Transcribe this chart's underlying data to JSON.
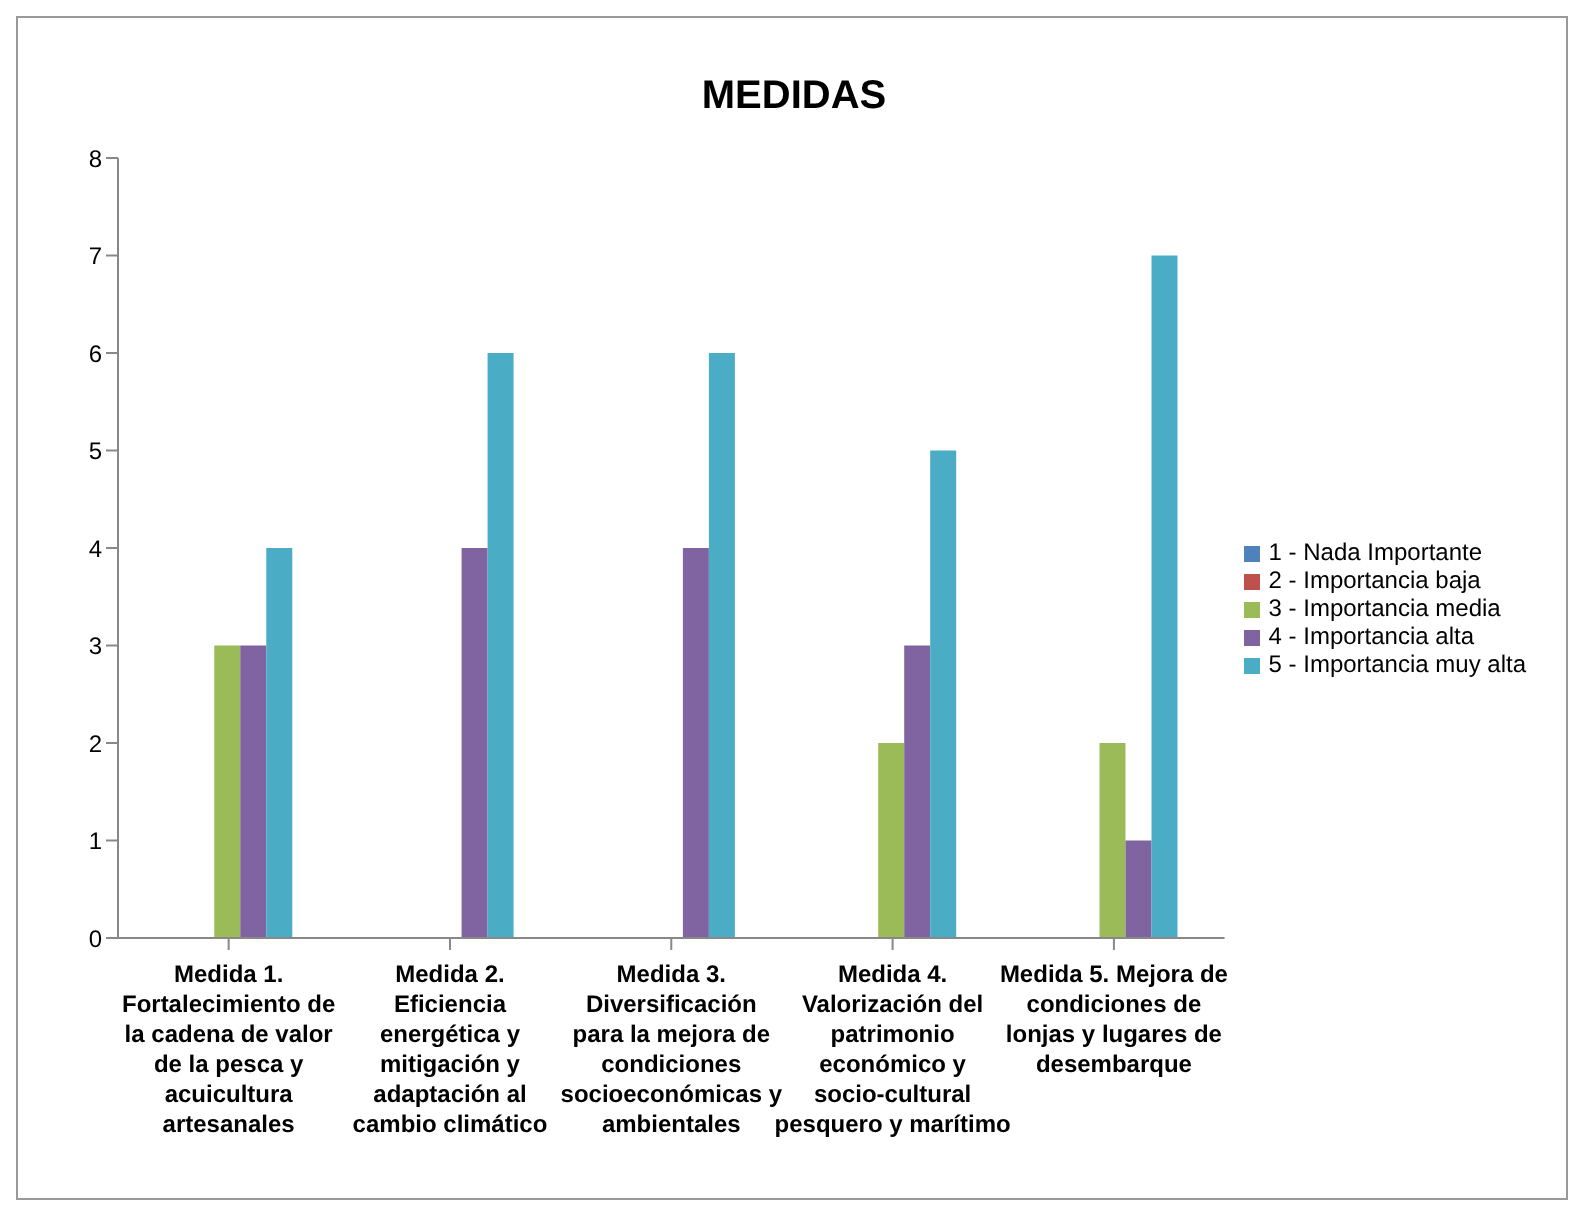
{
  "chart_data": {
    "type": "bar",
    "title": "MEDIDAS",
    "categories": [
      "Medida 1. Fortalecimiento de la cadena de valor de la pesca y acuicultura artesanales",
      "Medida 2. Eficiencia energética y mitigación y adaptación al cambio climático",
      "Medida 3. Diversificación para la mejora de condiciones socioeconómicas y ambientales",
      "Medida 4. Valorización del patrimonio económico y socio-cultural pesquero y marítimo",
      "Medida 5. Mejora de condiciones de lonjas y lugares de desembarque"
    ],
    "series": [
      {
        "name": "1 - Nada Importante",
        "color": "#4f81bd",
        "values": [
          0,
          0,
          0,
          0,
          0
        ]
      },
      {
        "name": "2 - Importancia baja",
        "color": "#c0504d",
        "values": [
          0,
          0,
          0,
          0,
          0
        ]
      },
      {
        "name": "3 - Importancia media",
        "color": "#9bbb59",
        "values": [
          3,
          0,
          0,
          2,
          2
        ]
      },
      {
        "name": "4 - Importancia alta",
        "color": "#8064a2",
        "values": [
          3,
          4,
          4,
          3,
          1
        ]
      },
      {
        "name": "5 - Importancia muy alta",
        "color": "#4bacc6",
        "values": [
          4,
          6,
          6,
          5,
          7
        ]
      }
    ],
    "ylim": [
      0,
      8
    ],
    "yticks": [
      0,
      1,
      2,
      3,
      4,
      5,
      6,
      7,
      8
    ],
    "grid": false,
    "legend": "right"
  }
}
